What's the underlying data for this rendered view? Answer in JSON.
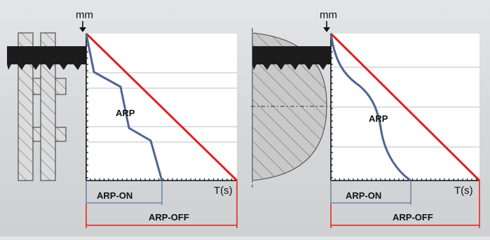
{
  "diagrams": [
    {
      "id": "left",
      "unit_label": "mm",
      "time_label": "T(s)",
      "curve_label": "ARP",
      "arp_on_label": "ARP-ON",
      "arp_off_label": "ARP-OFF",
      "workpiece": "profile-section",
      "curve_shape": "stepped"
    },
    {
      "id": "right",
      "unit_label": "mm",
      "time_label": "T(s)",
      "curve_label": "ARP",
      "arp_on_label": "ARP-ON",
      "arp_off_label": "ARP-OFF",
      "workpiece": "round-bar",
      "curve_shape": "smooth"
    }
  ],
  "colors": {
    "arp_off_line": "#e0201c",
    "arp_curve": "#4e6590",
    "arp_on_line": "#5b76a6",
    "grid": "#b9bcc2",
    "hatch": "#4a4a4a",
    "blade": "#1c1c1c"
  },
  "icons": [
    "arrow-down-icon",
    "saw-blade-icon"
  ]
}
